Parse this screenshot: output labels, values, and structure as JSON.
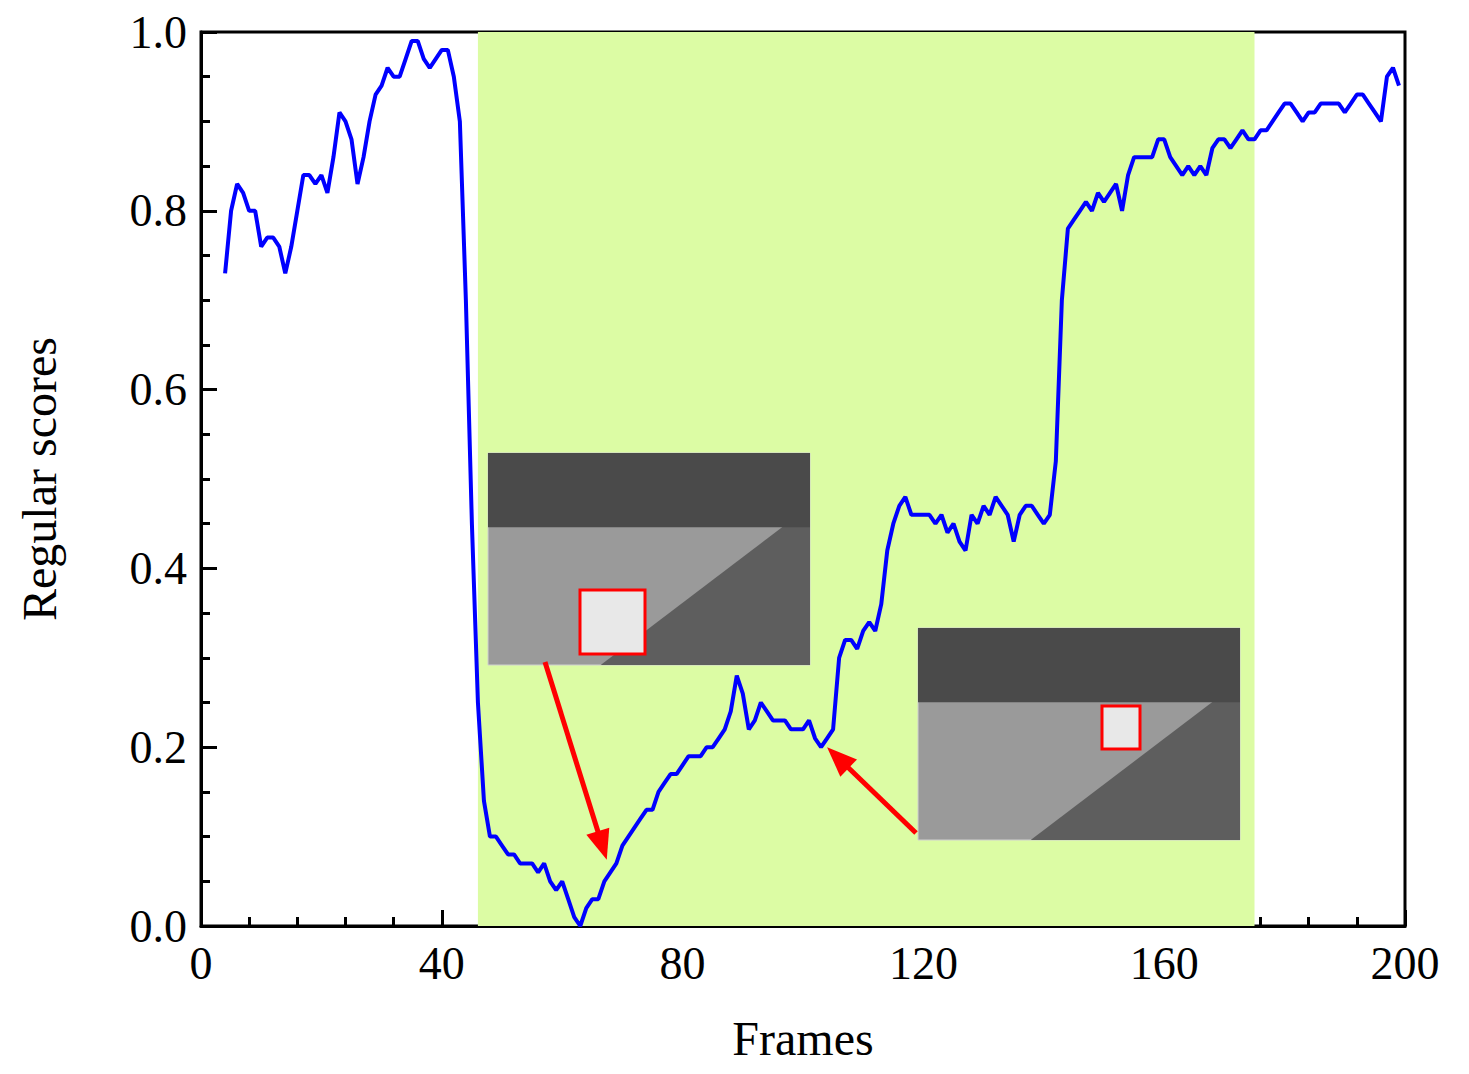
{
  "chart_data": {
    "type": "line",
    "xlabel": "Frames",
    "ylabel": "Regular scores",
    "color": "#0000ff",
    "xlim": [
      0,
      200
    ],
    "xticks": [
      0,
      40,
      80,
      120,
      160,
      200
    ],
    "ylim": [
      0,
      1
    ],
    "yticks": [
      {
        "value": 0,
        "label": "0.0"
      },
      0.2,
      0.4,
      0.6,
      0.8,
      {
        "value": 1,
        "label": "1.0"
      }
    ],
    "grid": false,
    "shaded_x": [
      46,
      175
    ],
    "arrows": [
      {
        "x": 67.4,
        "y": 0.074
      },
      {
        "x": 104,
        "y": 0.2
      }
    ],
    "x": [
      4,
      5,
      6,
      7,
      8,
      9,
      10,
      11,
      12,
      13,
      14,
      15,
      16,
      17,
      18,
      19,
      20,
      21,
      22,
      23,
      24,
      25,
      26,
      27,
      28,
      29,
      30,
      31,
      32,
      33,
      34,
      35,
      36,
      37,
      38,
      39,
      40,
      41,
      42,
      43,
      44,
      45,
      46,
      47,
      48,
      49,
      50,
      51,
      52,
      53,
      54,
      55,
      56,
      57,
      58,
      59,
      60,
      61,
      62,
      63,
      64,
      65,
      66,
      67,
      68,
      69,
      70,
      71,
      72,
      73,
      74,
      75,
      76,
      77,
      78,
      79,
      80,
      81,
      82,
      83,
      84,
      85,
      86,
      87,
      88,
      89,
      90,
      91,
      92,
      93,
      94,
      95,
      96,
      97,
      98,
      99,
      100,
      101,
      102,
      103,
      104,
      105,
      106,
      107,
      108,
      109,
      110,
      111,
      112,
      113,
      114,
      115,
      116,
      117,
      118,
      119,
      120,
      121,
      122,
      123,
      124,
      125,
      126,
      127,
      128,
      129,
      130,
      131,
      132,
      133,
      134,
      135,
      136,
      137,
      138,
      139,
      140,
      141,
      142,
      143,
      144,
      145,
      146,
      147,
      148,
      149,
      150,
      151,
      152,
      153,
      154,
      155,
      156,
      157,
      158,
      159,
      160,
      161,
      162,
      163,
      164,
      165,
      166,
      167,
      168,
      169,
      170,
      171,
      172,
      173,
      174,
      175,
      176,
      177,
      178,
      179,
      180,
      181,
      182,
      183,
      184,
      185,
      186,
      187,
      188,
      189,
      190,
      191,
      192,
      193,
      194,
      195,
      196,
      197,
      198,
      199
    ],
    "values": [
      0.73,
      0.8,
      0.83,
      0.82,
      0.8,
      0.8,
      0.76,
      0.77,
      0.77,
      0.76,
      0.73,
      0.76,
      0.8,
      0.84,
      0.84,
      0.83,
      0.84,
      0.82,
      0.86,
      0.91,
      0.9,
      0.88,
      0.83,
      0.86,
      0.9,
      0.93,
      0.94,
      0.96,
      0.95,
      0.95,
      0.97,
      0.99,
      0.99,
      0.97,
      0.96,
      0.97,
      0.98,
      0.98,
      0.95,
      0.9,
      0.7,
      0.45,
      0.25,
      0.14,
      0.1,
      0.1,
      0.09,
      0.08,
      0.08,
      0.07,
      0.07,
      0.07,
      0.06,
      0.07,
      0.05,
      0.04,
      0.05,
      0.03,
      0.01,
      0.0,
      0.02,
      0.03,
      0.03,
      0.05,
      0.06,
      0.07,
      0.09,
      0.1,
      0.11,
      0.12,
      0.13,
      0.13,
      0.15,
      0.16,
      0.17,
      0.17,
      0.18,
      0.19,
      0.19,
      0.19,
      0.2,
      0.2,
      0.21,
      0.22,
      0.24,
      0.28,
      0.26,
      0.22,
      0.23,
      0.25,
      0.24,
      0.23,
      0.23,
      0.23,
      0.22,
      0.22,
      0.22,
      0.23,
      0.21,
      0.2,
      0.21,
      0.22,
      0.3,
      0.32,
      0.32,
      0.31,
      0.33,
      0.34,
      0.33,
      0.36,
      0.42,
      0.45,
      0.47,
      0.48,
      0.46,
      0.46,
      0.46,
      0.46,
      0.45,
      0.46,
      0.44,
      0.45,
      0.43,
      0.42,
      0.46,
      0.45,
      0.47,
      0.46,
      0.48,
      0.47,
      0.46,
      0.43,
      0.46,
      0.47,
      0.47,
      0.46,
      0.45,
      0.46,
      0.52,
      0.7,
      0.78,
      0.79,
      0.8,
      0.81,
      0.8,
      0.82,
      0.81,
      0.82,
      0.83,
      0.8,
      0.84,
      0.86,
      0.86,
      0.86,
      0.86,
      0.88,
      0.88,
      0.86,
      0.85,
      0.84,
      0.85,
      0.84,
      0.85,
      0.84,
      0.87,
      0.88,
      0.88,
      0.87,
      0.88,
      0.89,
      0.88,
      0.88,
      0.89,
      0.89,
      0.9,
      0.91,
      0.92,
      0.92,
      0.91,
      0.9,
      0.91,
      0.91,
      0.92,
      0.92,
      0.92,
      0.92,
      0.91,
      0.92,
      0.93,
      0.93,
      0.92,
      0.91,
      0.9,
      0.95,
      0.96,
      0.94
    ]
  }
}
